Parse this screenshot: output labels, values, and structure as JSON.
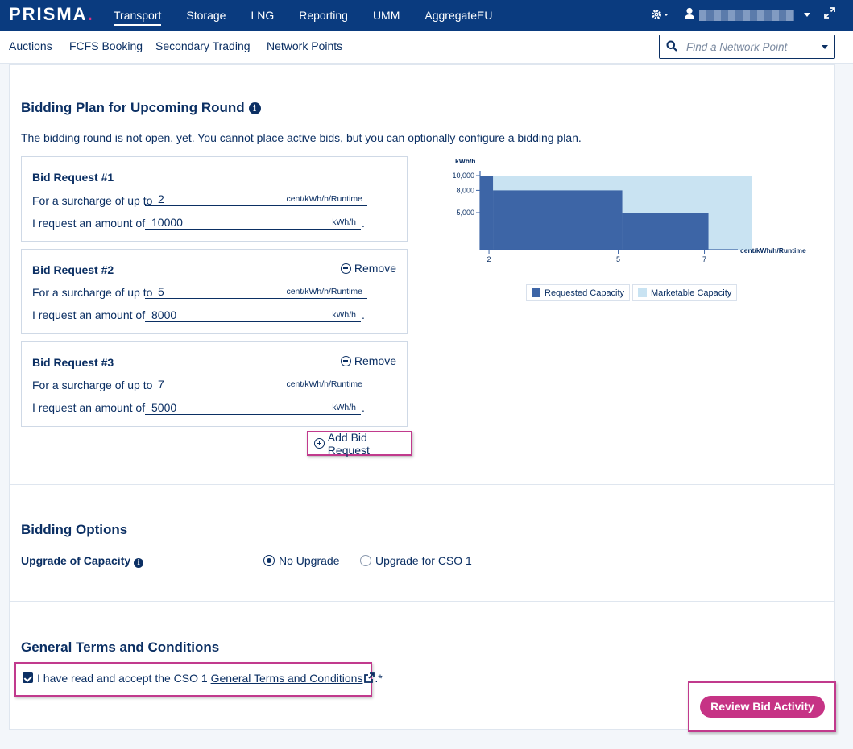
{
  "app": {
    "logo_text": "PRISMA",
    "logo_dot": ".",
    "brand_color": "#0a3b7f",
    "accent_color": "#c63385"
  },
  "topnav": {
    "items": [
      {
        "label": "Transport",
        "active": true
      },
      {
        "label": "Storage"
      },
      {
        "label": "LNG"
      },
      {
        "label": "Reporting"
      },
      {
        "label": "UMM"
      },
      {
        "label": "AggregateEU"
      }
    ],
    "icons": [
      "gear-icon",
      "user-icon",
      "chevron-down-icon",
      "expand-icon"
    ]
  },
  "subnav": {
    "items": [
      {
        "label": "Auctions",
        "active": true
      },
      {
        "label": "FCFS Booking"
      },
      {
        "label": "Secondary Trading"
      },
      {
        "label": "Network Points"
      }
    ],
    "search_placeholder": "Find a Network Point"
  },
  "bidding_plan": {
    "title": "Bidding Plan for Upcoming Round",
    "lead": "The bidding round is not open, yet. You cannot place active bids, but you can optionally configure a bidding plan.",
    "surcharge_label": "For a surcharge of up to",
    "amount_label": "I request an amount of",
    "surcharge_unit": "cent/kWh/h/Runtime",
    "amount_unit": "kWh/h",
    "remove_label": "Remove",
    "add_label": "Add Bid Request",
    "requests": [
      {
        "title": "Bid Request #1",
        "surcharge": "2",
        "amount": "10000"
      },
      {
        "title": "Bid Request #2",
        "surcharge": "5",
        "amount": "8000"
      },
      {
        "title": "Bid Request #3",
        "surcharge": "7",
        "amount": "5000"
      }
    ]
  },
  "chart_data": {
    "type": "area",
    "ylabel": "kWh/h",
    "xlabel": "cent/kWh/h/Runtime",
    "y_ticks": [
      "10,000",
      "8,000",
      "5,000"
    ],
    "x_ticks": [
      "2",
      "5",
      "7"
    ],
    "series": [
      {
        "name": "Requested Capacity",
        "color": "#3d65a6",
        "steps": [
          [
            1.7,
            10000
          ],
          [
            2,
            8000
          ],
          [
            5,
            5000
          ],
          [
            7,
            0
          ]
        ]
      },
      {
        "name": "Marketable Capacity",
        "color": "#c9e3f2",
        "steps": [
          [
            1.7,
            10000
          ],
          [
            8,
            10000
          ]
        ]
      }
    ],
    "legend_position": "bottom"
  },
  "bidding_options": {
    "title": "Bidding Options",
    "upgrade_label": "Upgrade of Capacity",
    "options": [
      {
        "label": "No Upgrade",
        "selected": true
      },
      {
        "label": "Upgrade for CSO 1",
        "selected": false
      }
    ]
  },
  "terms": {
    "title": "General Terms and Conditions",
    "text_before": "I have read and accept the CSO 1 ",
    "link": "General Terms and Conditions",
    "text_after": ".*",
    "checked": true
  },
  "review_button": "Review Bid Activity"
}
